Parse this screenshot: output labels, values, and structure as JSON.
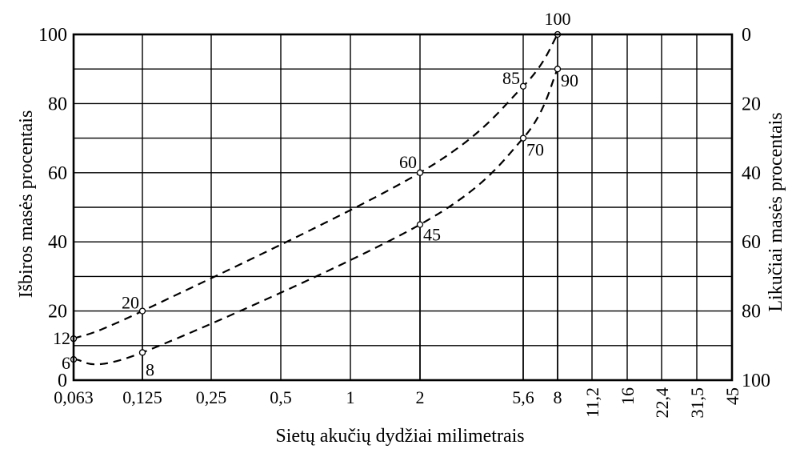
{
  "chart_data": {
    "type": "line",
    "title": "",
    "xlabel": "Sietų akučių dydžiai milimetrais",
    "ylabel": "Išbiros masės procentais",
    "y2label": "Likučiai masės procentais",
    "x_scale": "categorical sieve sizes",
    "categories": [
      "0,063",
      "0,125",
      "0,25",
      "0,5",
      "1",
      "2",
      "5,6",
      "8",
      "11,2",
      "16",
      "22,4",
      "31,5",
      "45"
    ],
    "ylim": [
      0,
      100
    ],
    "y_ticks": [
      0,
      20,
      40,
      60,
      80,
      100
    ],
    "y_tick_labels": [
      "0",
      "20",
      "40",
      "60",
      "80",
      "100"
    ],
    "y2_ticks": [
      0,
      20,
      40,
      60,
      80,
      100
    ],
    "y2_tick_labels": [
      "100",
      "80",
      "60",
      "40",
      "20",
      "0"
    ],
    "grid": true,
    "series": [
      {
        "style": "dashed",
        "points": [
          {
            "x": "0,063",
            "y": 12,
            "label": "12"
          },
          {
            "x": "0,125",
            "y": 20,
            "label": "20"
          },
          {
            "x": "2",
            "y": 60,
            "label": "60"
          },
          {
            "x": "5,6",
            "y": 85,
            "label": "85"
          },
          {
            "x": "8",
            "y": 100,
            "label": "100"
          }
        ]
      },
      {
        "style": "dashed",
        "points": [
          {
            "x": "0,063",
            "y": 6,
            "label": "6"
          },
          {
            "x": "0,125",
            "y": 8,
            "label": "8"
          },
          {
            "x": "2",
            "y": 45,
            "label": "45"
          },
          {
            "x": "5,6",
            "y": 70,
            "label": "70"
          },
          {
            "x": "8",
            "y": 90,
            "label": "90"
          }
        ]
      }
    ]
  }
}
